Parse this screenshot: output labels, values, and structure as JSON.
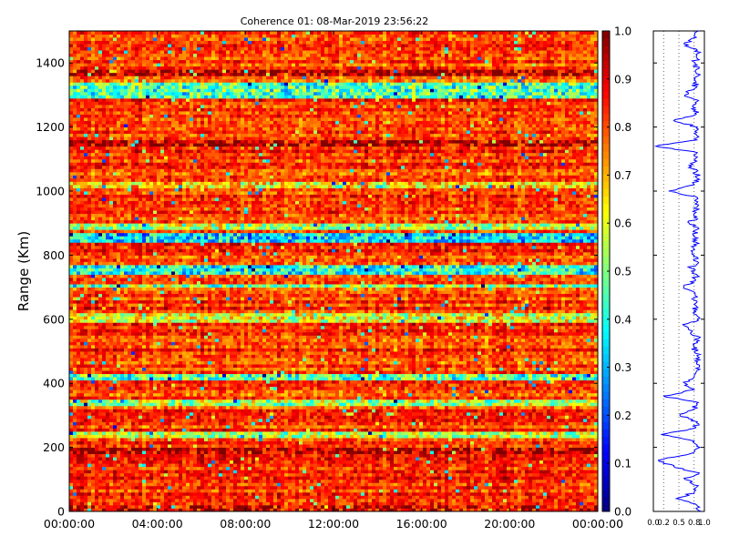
{
  "chart_data": [
    {
      "type": "heatmap",
      "title": "Coherence 01: 08-Mar-2019 23:56:22",
      "ylabel": "Range (Km)",
      "xlabel": "",
      "x_tick_labels": [
        "00:00:00",
        "04:00:00",
        "08:00:00",
        "12:00:00",
        "16:00:00",
        "20:00:00",
        "00:00:00"
      ],
      "y_tick_labels": [
        "0",
        "200",
        "400",
        "600",
        "800",
        "1000",
        "1200",
        "1400"
      ],
      "ylim": [
        0,
        1500
      ],
      "x_hours_range": [
        0,
        24
      ],
      "colorbar": {
        "range": [
          0.0,
          1.0
        ],
        "tick_labels": [
          "0.0",
          "0.1",
          "0.2",
          "0.3",
          "0.4",
          "0.5",
          "0.6",
          "0.7",
          "0.8",
          "0.9",
          "1.0"
        ],
        "colormap": "jet"
      },
      "range_bands_km": [
        {
          "range": [
            5,
            20
          ],
          "level": 0.9
        },
        {
          "range": [
            180,
            200
          ],
          "level": 0.95
        },
        {
          "range": [
            230,
            250
          ],
          "level": 0.55
        },
        {
          "range": [
            335,
            350
          ],
          "level": 0.55
        },
        {
          "range": [
            410,
            425
          ],
          "level": 0.45
        },
        {
          "range": [
            595,
            615
          ],
          "level": 0.6
        },
        {
          "range": [
            700,
            712
          ],
          "level": 0.5
        },
        {
          "range": [
            745,
            770
          ],
          "level": 0.4
        },
        {
          "range": [
            845,
            870
          ],
          "level": 0.35
        },
        {
          "range": [
            880,
            900
          ],
          "level": 0.55
        },
        {
          "range": [
            1010,
            1025
          ],
          "level": 0.65
        },
        {
          "range": [
            1140,
            1160
          ],
          "level": 0.95
        },
        {
          "range": [
            1290,
            1335
          ],
          "level": 0.45
        },
        {
          "range": [
            1360,
            1375
          ],
          "level": 0.95
        }
      ]
    },
    {
      "type": "line",
      "title": "",
      "xlabel": "",
      "ylabel": "",
      "xlim": [
        0.0,
        1.0
      ],
      "ylim": [
        0,
        1500
      ],
      "x_tick_labels": [
        "0.0",
        "0.2",
        "0.5",
        "0.8",
        "1.0"
      ],
      "grid": true,
      "color": "#0000ff",
      "series": [
        {
          "y_km": [
            0,
            20,
            40,
            60,
            80,
            100,
            120,
            140,
            160,
            180,
            200,
            220,
            240,
            260,
            280,
            300,
            320,
            340,
            360,
            380,
            400,
            420,
            440,
            460,
            480,
            500,
            520,
            540,
            560,
            580,
            600,
            620,
            640,
            660,
            680,
            700,
            720,
            740,
            760,
            780,
            800,
            820,
            840,
            860,
            880,
            900,
            920,
            940,
            960,
            980,
            1000,
            1020,
            1040,
            1060,
            1080,
            1100,
            1120,
            1140,
            1160,
            1180,
            1200,
            1220,
            1240,
            1260,
            1280,
            1300,
            1320,
            1340,
            1360,
            1380,
            1400,
            1420,
            1440,
            1460,
            1480,
            1500
          ],
          "x": [
            0.93,
            0.85,
            0.45,
            0.8,
            0.88,
            0.62,
            0.9,
            0.4,
            0.1,
            0.72,
            0.91,
            0.8,
            0.15,
            0.82,
            0.86,
            0.52,
            0.79,
            0.88,
            0.2,
            0.8,
            0.62,
            0.8,
            0.86,
            0.85,
            0.9,
            0.82,
            0.78,
            0.88,
            0.75,
            0.6,
            0.86,
            0.78,
            0.85,
            0.8,
            0.82,
            0.6,
            0.82,
            0.85,
            0.72,
            0.86,
            0.8,
            0.79,
            0.84,
            0.8,
            0.86,
            0.7,
            0.85,
            0.84,
            0.82,
            0.86,
            0.3,
            0.8,
            0.86,
            0.84,
            0.7,
            0.82,
            0.86,
            0.05,
            0.85,
            0.8,
            0.86,
            0.4,
            0.84,
            0.82,
            0.86,
            0.62,
            0.8,
            0.84,
            0.88,
            0.85,
            0.82,
            0.84,
            0.86,
            0.6,
            0.84,
            0.88
          ]
        }
      ]
    }
  ]
}
